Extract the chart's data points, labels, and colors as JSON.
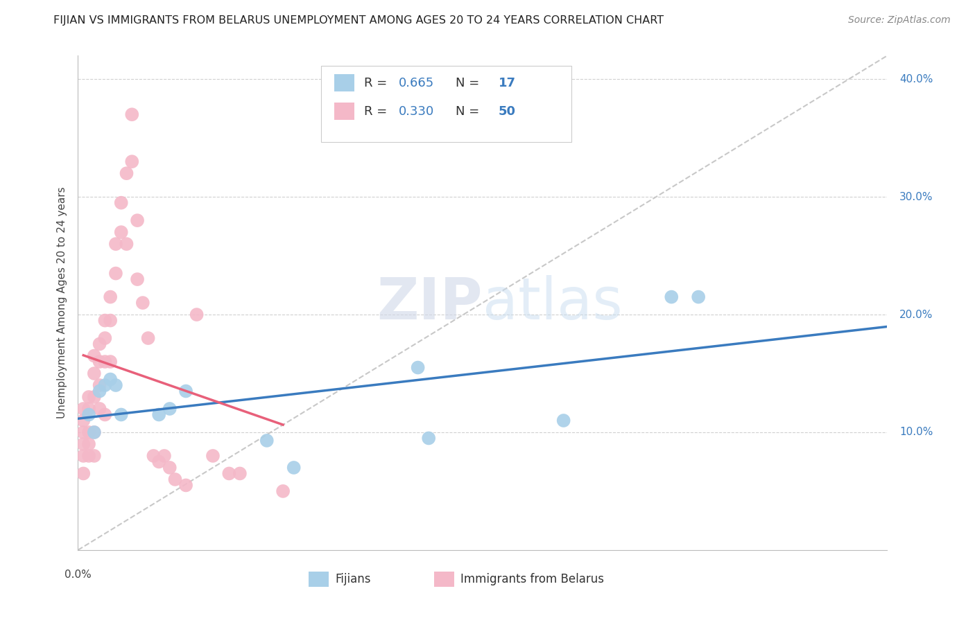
{
  "title": "FIJIAN VS IMMIGRANTS FROM BELARUS UNEMPLOYMENT AMONG AGES 20 TO 24 YEARS CORRELATION CHART",
  "source": "Source: ZipAtlas.com",
  "ylabel": "Unemployment Among Ages 20 to 24 years",
  "xlim": [
    0.0,
    0.15
  ],
  "ylim": [
    0.0,
    0.42
  ],
  "xticks": [
    0.0,
    0.05,
    0.1,
    0.15
  ],
  "yticks": [
    0.1,
    0.2,
    0.3,
    0.4
  ],
  "fijian_color": "#a8cfe8",
  "belarus_color": "#f4b8c8",
  "fijian_line_color": "#3a7bbf",
  "belarus_line_color": "#e8607a",
  "diagonal_color": "#c8c8c8",
  "R_fijian": 0.665,
  "N_fijian": 17,
  "R_belarus": 0.33,
  "N_belarus": 50,
  "fijian_x": [
    0.002,
    0.003,
    0.004,
    0.005,
    0.006,
    0.007,
    0.008,
    0.015,
    0.017,
    0.02,
    0.035,
    0.04,
    0.063,
    0.065,
    0.09,
    0.11,
    0.115
  ],
  "fijian_y": [
    0.115,
    0.1,
    0.135,
    0.14,
    0.145,
    0.14,
    0.115,
    0.115,
    0.12,
    0.135,
    0.093,
    0.07,
    0.155,
    0.095,
    0.11,
    0.215,
    0.215
  ],
  "belarus_x": [
    0.001,
    0.001,
    0.001,
    0.001,
    0.001,
    0.001,
    0.002,
    0.002,
    0.002,
    0.002,
    0.002,
    0.003,
    0.003,
    0.003,
    0.003,
    0.003,
    0.004,
    0.004,
    0.004,
    0.004,
    0.005,
    0.005,
    0.005,
    0.005,
    0.006,
    0.006,
    0.006,
    0.007,
    0.007,
    0.008,
    0.008,
    0.009,
    0.009,
    0.01,
    0.01,
    0.011,
    0.011,
    0.012,
    0.013,
    0.014,
    0.015,
    0.016,
    0.017,
    0.018,
    0.02,
    0.022,
    0.025,
    0.028,
    0.03,
    0.038
  ],
  "belarus_y": [
    0.12,
    0.11,
    0.1,
    0.09,
    0.08,
    0.065,
    0.13,
    0.12,
    0.1,
    0.09,
    0.08,
    0.165,
    0.15,
    0.13,
    0.1,
    0.08,
    0.175,
    0.16,
    0.14,
    0.12,
    0.195,
    0.18,
    0.16,
    0.115,
    0.215,
    0.195,
    0.16,
    0.26,
    0.235,
    0.295,
    0.27,
    0.32,
    0.26,
    0.37,
    0.33,
    0.28,
    0.23,
    0.21,
    0.18,
    0.08,
    0.075,
    0.08,
    0.07,
    0.06,
    0.055,
    0.2,
    0.08,
    0.065,
    0.065,
    0.05
  ],
  "background_color": "#ffffff",
  "grid_color": "#d0d0d0",
  "title_fontsize": 11.5,
  "source_fontsize": 10,
  "tick_label_fontsize": 11,
  "legend_fontsize": 13
}
